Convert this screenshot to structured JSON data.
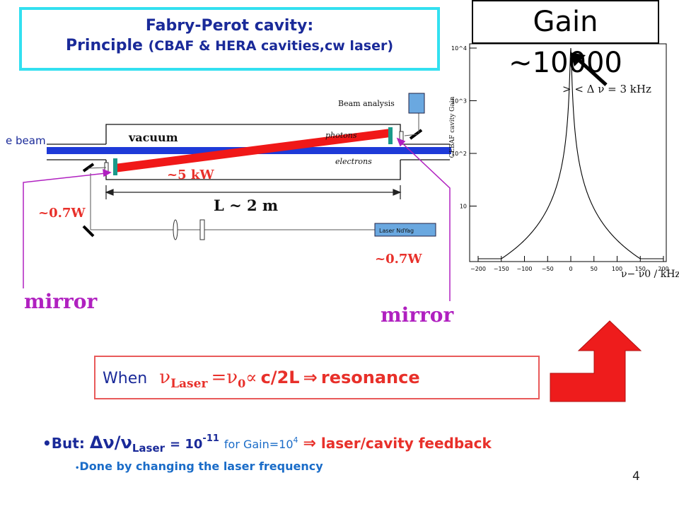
{
  "title": {
    "line1": "Fabry-Perot cavity:",
    "line2_main": "Principle",
    "line2_sub": "(CBAF & HERA cavities,cw laser)"
  },
  "gain_box": {
    "label": "Gain ~10000"
  },
  "diagram": {
    "beam_analysis": "Beam analysis",
    "e_beam": "e beam",
    "vacuum": "vacuum",
    "photons": "photons",
    "electrons": "electrons",
    "power_cavity": "~5 kW",
    "length": "L ~ 2 m",
    "power_in": "~0.7W",
    "laser": "Laser NdYag",
    "power_out": "~0.7W",
    "mirror_left": "mirror",
    "mirror_right": "mirror",
    "colors": {
      "beam": "#1e3ad8",
      "laser": "#f01818",
      "mirror": "#1a9a8a",
      "pointer": "#b020c0"
    }
  },
  "chart_data": {
    "type": "line",
    "xlabel": "ν− ν0 / kHz",
    "ylabel": "CEBAF cavity Gain",
    "annotation": "> < Δ ν = 3 kHz",
    "xlim": [
      -200,
      200
    ],
    "ylim": [
      1,
      10000
    ],
    "yscale": "log",
    "xticks": [
      "−200",
      "−150",
      "−100",
      "−50",
      "0",
      "50",
      "100",
      "150",
      "200"
    ],
    "yticks": [
      "10",
      "10^2",
      "10^3",
      "10^4"
    ],
    "series": [
      {
        "description": "Lorentzian resonance, FWHM 3 kHz, peak gain 10000",
        "x": [
          -200,
          -150,
          -100,
          -50,
          -20,
          -10,
          -5,
          -3,
          -1.5,
          0,
          1.5,
          3,
          5,
          10,
          20,
          50,
          100,
          150,
          200
        ],
        "y": [
          1.4,
          2.5,
          5.6,
          22,
          140,
          550,
          2000,
          3800,
          5000,
          10000,
          5000,
          3800,
          2000,
          550,
          140,
          22,
          5.6,
          2.5,
          1.4
        ]
      }
    ]
  },
  "resonance": {
    "when": "When",
    "nu": "ν",
    "laser_sub": "Laser",
    "eq": "=ν",
    "zero_sub": "0",
    "prop": "∝",
    "tail": "c/2L",
    "arrow": "⇒",
    "word": "resonance"
  },
  "bullet1": {
    "but": "But:",
    "delta": "Δν",
    "slash": "/",
    "nu": "ν",
    "laser_sub": "Laser",
    "eq": "= 10",
    "exp": "-11",
    "for_gain": "for Gain=10",
    "gain_exp": "4",
    "arrow": "⇒",
    "feedback": "laser/cavity feedback"
  },
  "bullet2": {
    "text": "Done by changing the laser frequency"
  },
  "page_number": "4"
}
